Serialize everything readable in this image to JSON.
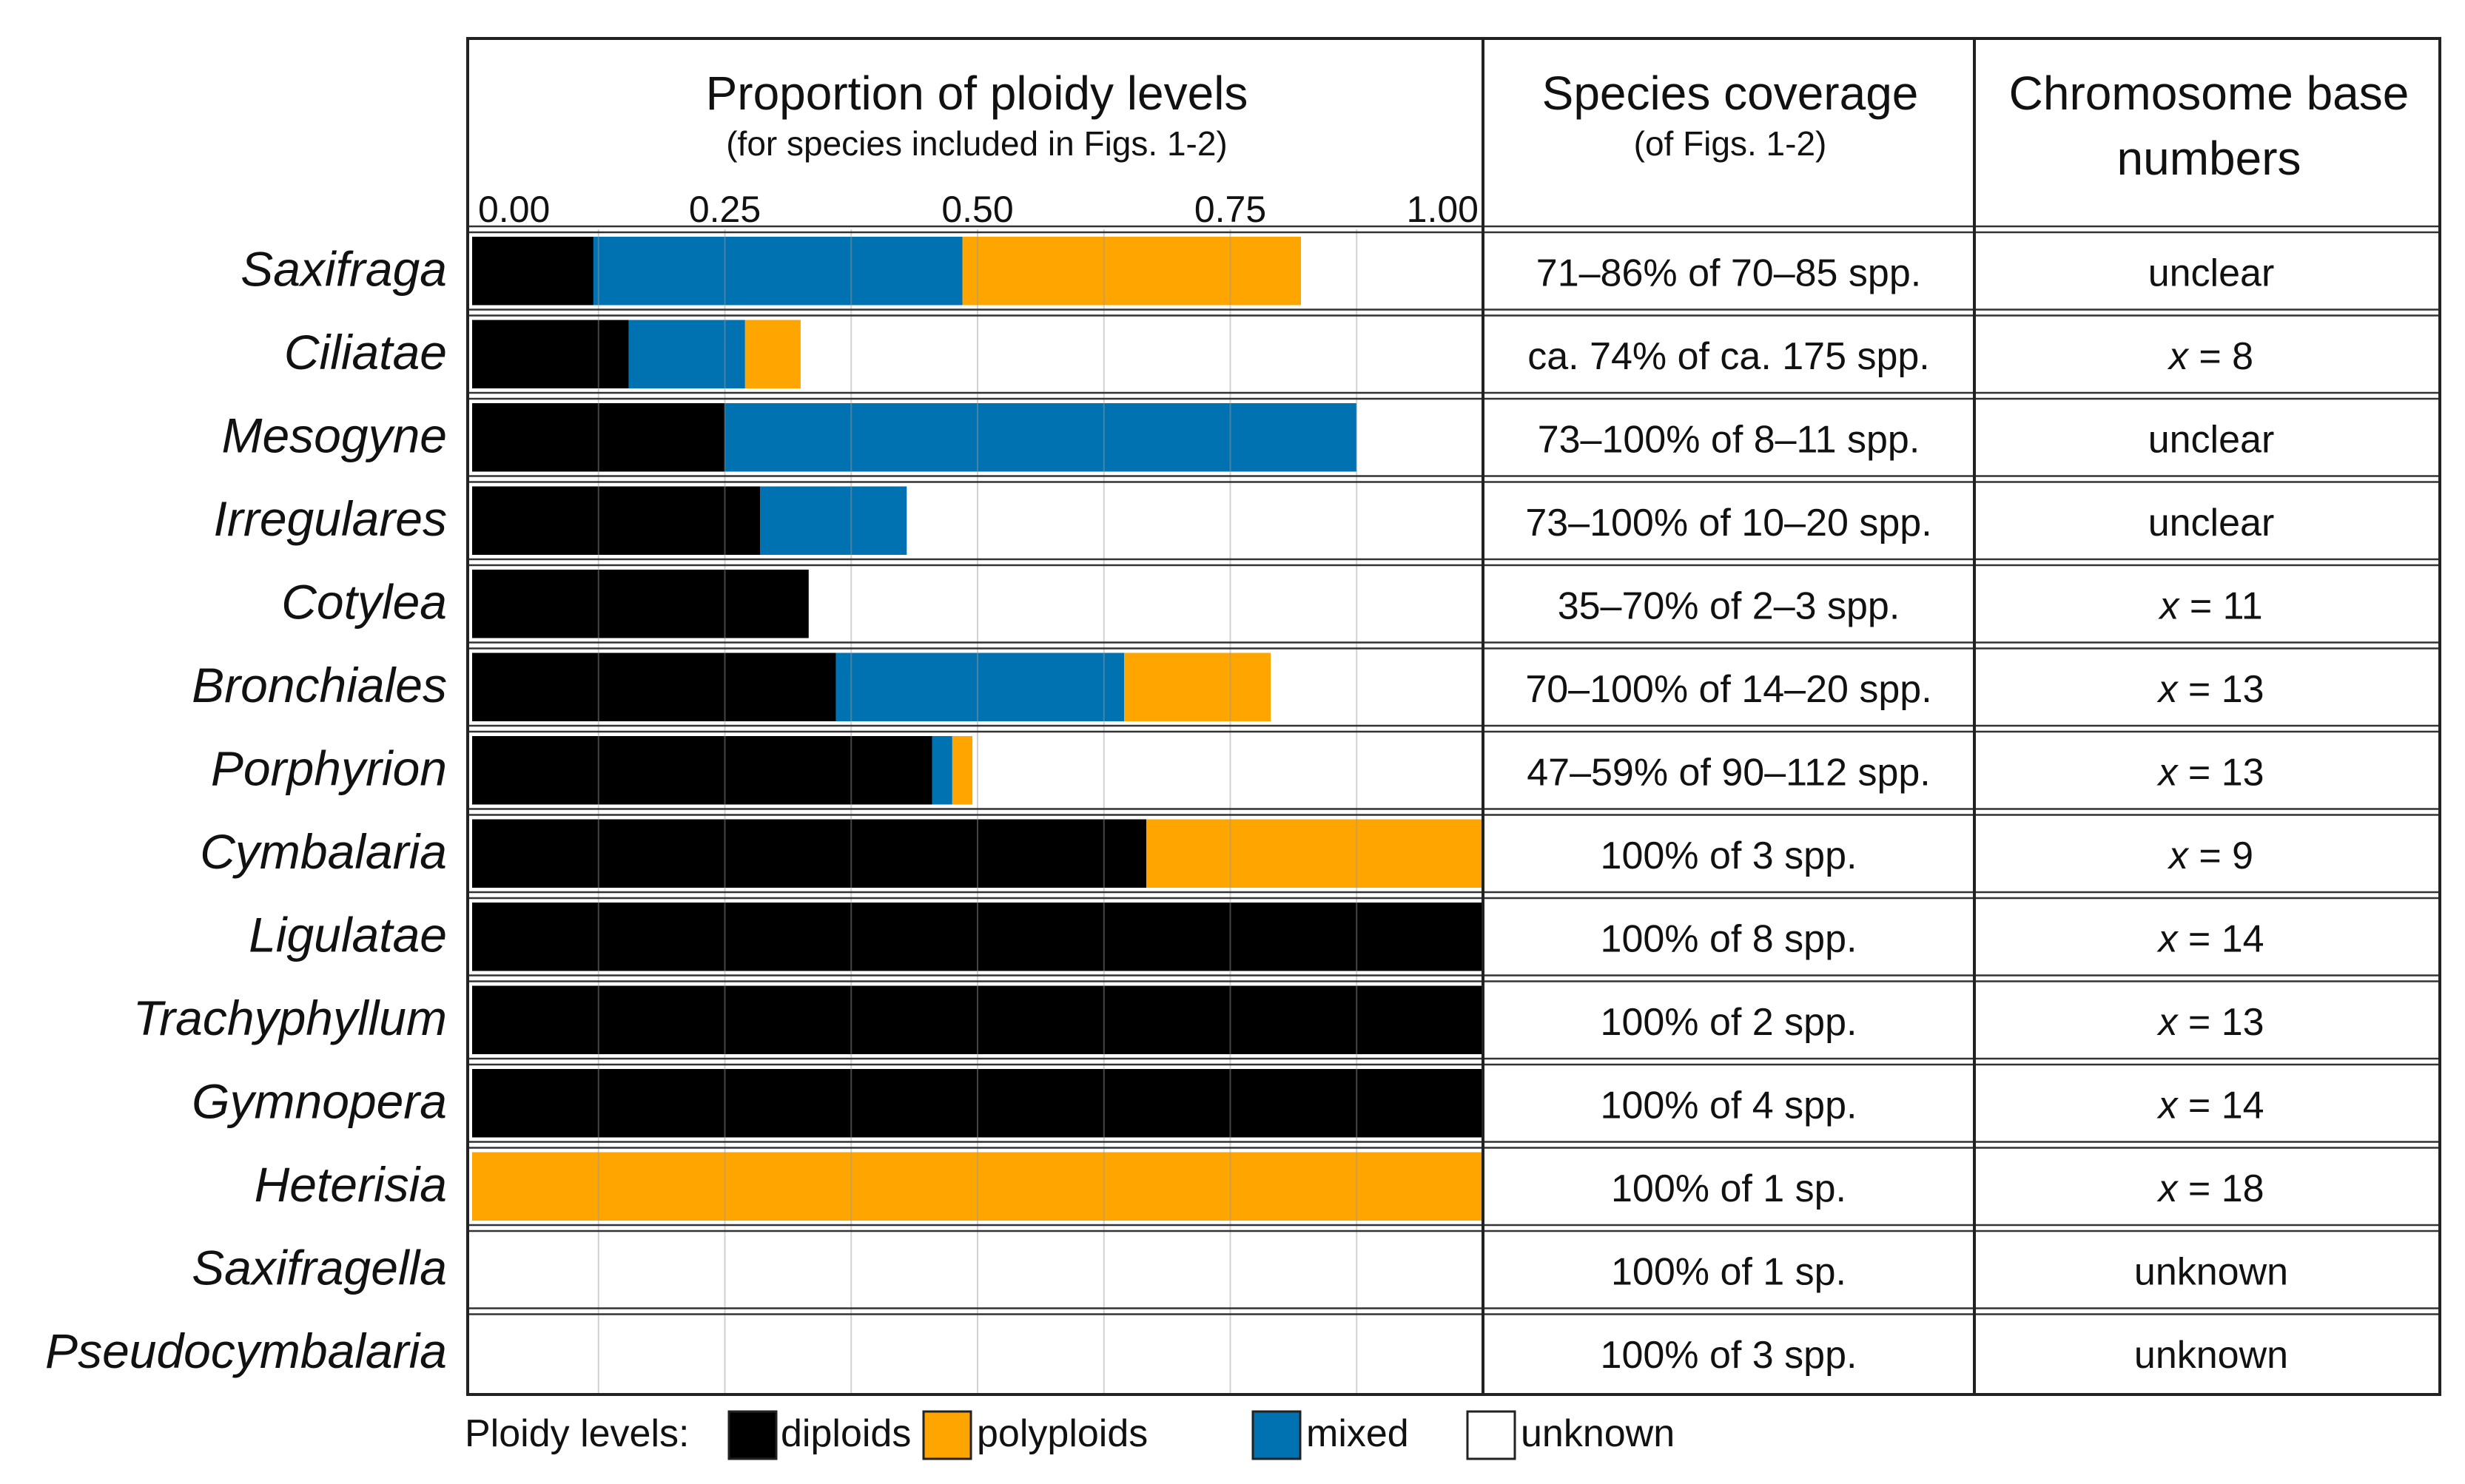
{
  "chart_data": {
    "type": "bar",
    "orientation": "horizontal",
    "stacked": true,
    "title": "Proportion of ploidy levels",
    "subtitle": "(for species included in Figs. 1-2)",
    "xlim": [
      0,
      1
    ],
    "x_ticks": [
      "0.00",
      "0.25",
      "0.50",
      "0.75",
      "1.00"
    ],
    "x_tick_values": [
      0,
      0.25,
      0.5,
      0.75,
      1.0
    ],
    "grid": true,
    "categories": [
      "Saxifraga",
      "Ciliatae",
      "Mesogyne",
      "Irregulares",
      "Cotylea",
      "Bronchiales",
      "Porphyrion",
      "Cymbalaria",
      "Ligulatae",
      "Trachyphyllum",
      "Gymnopera",
      "Heterisia",
      "Saxifragella",
      "Pseudocymbalaria"
    ],
    "series": [
      {
        "name": "diploids",
        "color": "#000000",
        "values": [
          0.12,
          0.155,
          0.25,
          0.285,
          0.333,
          0.36,
          0.455,
          0.667,
          1.0,
          1.0,
          1.0,
          0.0,
          0.0,
          0.0
        ]
      },
      {
        "name": "mixed",
        "color": "#0072b2",
        "values": [
          0.365,
          0.115,
          0.625,
          0.145,
          0.0,
          0.285,
          0.02,
          0.0,
          0.0,
          0.0,
          0.0,
          0.0,
          0.0,
          0.0
        ]
      },
      {
        "name": "polyploids",
        "color": "#ffa500",
        "values": [
          0.335,
          0.055,
          0.0,
          0.0,
          0.0,
          0.145,
          0.02,
          0.333,
          0.0,
          0.0,
          0.0,
          1.0,
          0.0,
          0.0
        ]
      },
      {
        "name": "unknown",
        "color": "#ffffff",
        "values": [
          0.18,
          0.675,
          0.125,
          0.57,
          0.667,
          0.21,
          0.505,
          0.0,
          0.0,
          0.0,
          0.0,
          0.0,
          1.0,
          1.0
        ]
      }
    ],
    "legend": {
      "title": "Ploidy levels:",
      "position": "bottom",
      "entries": [
        {
          "label": "diploids",
          "color": "#000000"
        },
        {
          "label": "polyploids",
          "color": "#ffa500"
        },
        {
          "label": "mixed",
          "color": "#0072b2"
        },
        {
          "label": "unknown",
          "color": "#ffffff"
        }
      ]
    },
    "columns": [
      {
        "title": "Species coverage",
        "subtitle": "(of Figs. 1-2)",
        "values": [
          "71–86% of 70–85 spp.",
          "ca. 74% of ca. 175 spp.",
          "73–100% of 8–11 spp.",
          "73–100% of 10–20 spp.",
          "35–70% of 2–3 spp.",
          "70–100% of 14–20 spp.",
          "47–59% of 90–112 spp.",
          "100% of 3 spp.",
          "100% of 8 spp.",
          "100% of 2 spp.",
          "100% of 4 spp.",
          "100% of 1 sp.",
          "100% of 1 sp.",
          "100% of 3 spp."
        ]
      },
      {
        "title_lines": [
          "Chromosome base",
          "numbers"
        ],
        "values": [
          {
            "text": "unclear"
          },
          {
            "var": "x",
            "text": " = 8"
          },
          {
            "text": "unclear"
          },
          {
            "text": "unclear"
          },
          {
            "var": "x",
            "text": " = 11"
          },
          {
            "var": "x",
            "text": " = 13"
          },
          {
            "var": "x",
            "text": " = 13"
          },
          {
            "var": "x",
            "text": " = 9"
          },
          {
            "var": "x",
            "text": " = 14"
          },
          {
            "var": "x",
            "text": " = 13"
          },
          {
            "var": "x",
            "text": " = 14"
          },
          {
            "var": "x",
            "text": " = 18"
          },
          {
            "text": "unknown"
          },
          {
            "text": "unknown"
          }
        ]
      }
    ]
  }
}
